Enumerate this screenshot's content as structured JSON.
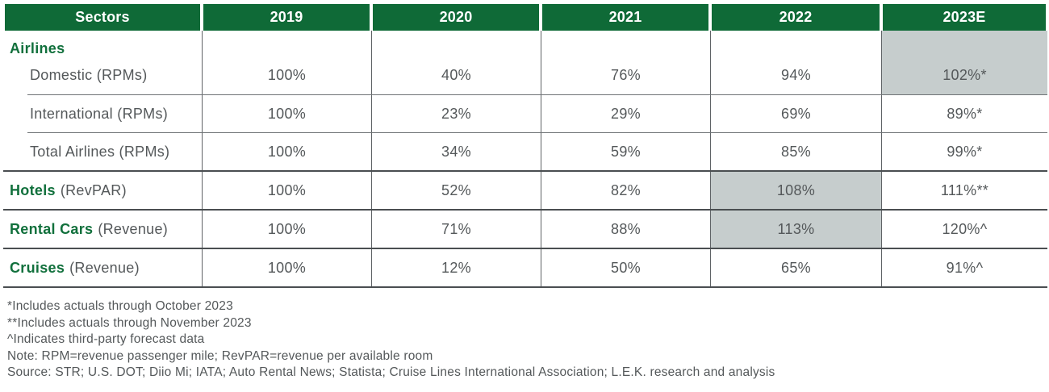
{
  "table": {
    "columns": [
      "Sectors",
      "2019",
      "2020",
      "2021",
      "2022",
      "2023E"
    ],
    "airlines_label": "Airlines",
    "rows": [
      {
        "label": "Domestic (RPMs)",
        "values": [
          "100%",
          "40%",
          "76%",
          "94%",
          "102%*"
        ],
        "highlight_column": "2023E"
      },
      {
        "label": "International (RPMs)",
        "values": [
          "100%",
          "23%",
          "29%",
          "69%",
          "89%*"
        ],
        "highlight_column": null
      },
      {
        "label": "Total Airlines (RPMs)",
        "values": [
          "100%",
          "34%",
          "59%",
          "85%",
          "99%*"
        ],
        "highlight_column": null
      },
      {
        "label": "Hotels",
        "qualifier": "(RevPAR)",
        "values": [
          "100%",
          "52%",
          "82%",
          "108%",
          "111%**"
        ],
        "highlight_column": "2022"
      },
      {
        "label": "Rental Cars",
        "qualifier": "(Revenue)",
        "values": [
          "100%",
          "71%",
          "88%",
          "113%",
          "120%^"
        ],
        "highlight_column": "2022"
      },
      {
        "label": "Cruises",
        "qualifier": "(Revenue)",
        "values": [
          "100%",
          "12%",
          "50%",
          "65%",
          "91%^"
        ],
        "highlight_column": null
      }
    ]
  },
  "chart_data": {
    "type": "table",
    "columns": [
      "Sectors",
      "2019",
      "2020",
      "2021",
      "2022",
      "2023E"
    ],
    "rows": [
      {
        "sector": "Airlines — Domestic (RPMs)",
        "values_pct": [
          100,
          40,
          76,
          94,
          102
        ],
        "note_marker": "*",
        "highlighted_cell": "2023E"
      },
      {
        "sector": "Airlines — International (RPMs)",
        "values_pct": [
          100,
          23,
          29,
          69,
          89
        ],
        "note_marker": "*",
        "highlighted_cell": null
      },
      {
        "sector": "Airlines — Total Airlines (RPMs)",
        "values_pct": [
          100,
          34,
          59,
          85,
          99
        ],
        "note_marker": "*",
        "highlighted_cell": null
      },
      {
        "sector": "Hotels (RevPAR)",
        "values_pct": [
          100,
          52,
          82,
          108,
          111
        ],
        "note_marker": "**",
        "highlighted_cell": "2022"
      },
      {
        "sector": "Rental Cars (Revenue)",
        "values_pct": [
          100,
          71,
          88,
          113,
          120
        ],
        "note_marker": "^",
        "highlighted_cell": "2022"
      },
      {
        "sector": "Cruises (Revenue)",
        "values_pct": [
          100,
          12,
          50,
          65,
          91
        ],
        "note_marker": "^",
        "highlighted_cell": null
      }
    ],
    "title": "",
    "legend_position": "none",
    "grid": "table-borders"
  },
  "footnotes": [
    "*Includes actuals through October 2023",
    "**Includes actuals through November 2023",
    "^Indicates third-party forecast data",
    "Note: RPM=revenue passenger mile; RevPAR=revenue per available room",
    "Source: STR; U.S. DOT; Diio Mi; IATA; Auto Rental News; Statista; Cruise Lines International Association; L.E.K. research and analysis"
  ],
  "colors": {
    "header_green": "#0F6A37",
    "sector_green": "#11703C",
    "highlight_gray": "#C6CDCD",
    "text_gray": "#54585A"
  }
}
